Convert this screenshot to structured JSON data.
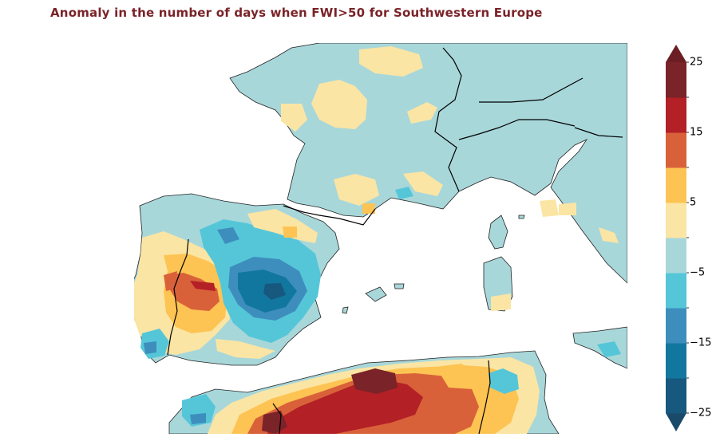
{
  "title": "Anomaly in the number of days when FWI>50 for Southwestern Europe",
  "colorbar": {
    "tick_labels": [
      "25",
      "15",
      "5",
      "−5",
      "−15",
      "−25"
    ],
    "extend": "both",
    "levels": [
      -25,
      -20,
      -15,
      -10,
      -5,
      0,
      5,
      10,
      15,
      20,
      25
    ],
    "colors": [
      "#17587e",
      "#12779f",
      "#3d8ebd",
      "#55c6d8",
      "#a8d7da",
      "#fbe5a4",
      "#fdc453",
      "#d9613a",
      "#b32026",
      "#7a2328"
    ],
    "extend_low_color": "#1a4a6a",
    "extend_high_color": "#6b1f24"
  },
  "map": {
    "region": "Southwestern Europe",
    "projection": "PlateCarree",
    "base_color": "#a8d7da",
    "ocean_color": "#ffffff",
    "border_color": "#000000"
  }
}
